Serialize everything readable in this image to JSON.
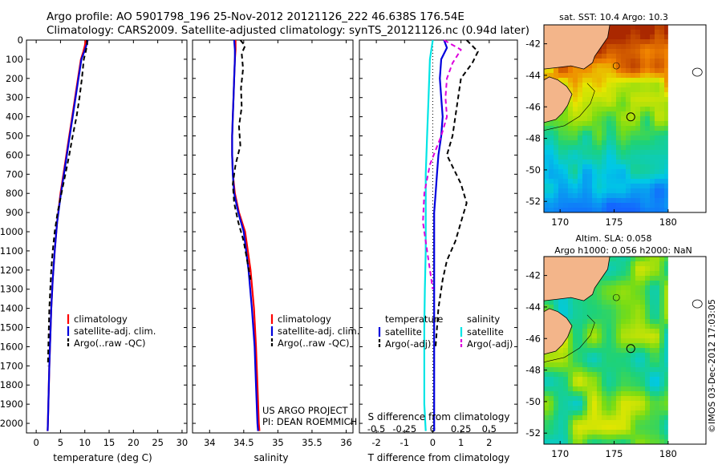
{
  "header": {
    "line1": "Argo profile: AO 5901798_196 25-Nov-2012 20121126_222 46.638S 176.54E",
    "line2": "Climatology: CARS2009. Satellite-adjusted climatology: synTS_20121126.nc (0.94d later)"
  },
  "colors": {
    "climatology": "#ff0000",
    "satellite": "#0000dd",
    "argo": "#000000",
    "salinity_satellite": "#00e5e5",
    "salinity_argo": "#dd00dd",
    "land": "#f3b58a"
  },
  "chart_data": [
    {
      "type": "line",
      "name": "temperature",
      "xlabel": "temperature (deg C)",
      "xlim": [
        -2,
        31
      ],
      "ylim": [
        2050,
        0
      ],
      "xticks": [
        0,
        5,
        10,
        15,
        20,
        25,
        30
      ],
      "yticks": [
        0,
        100,
        200,
        300,
        400,
        500,
        600,
        700,
        800,
        900,
        1000,
        1100,
        1200,
        1300,
        1400,
        1500,
        1600,
        1700,
        1800,
        1900,
        2000
      ],
      "legend": [
        "climatology",
        "satellite-adj. clim.",
        "Argo(..raw -QC)"
      ],
      "series": [
        {
          "name": "climatology",
          "x": [
            10.2,
            10.0,
            9.7,
            9.2,
            8.6,
            8.0,
            7.4,
            6.8,
            5.9,
            5.0,
            4.3,
            3.8,
            3.4,
            3.1,
            2.9,
            2.7,
            2.6,
            2.5,
            2.4,
            2.35
          ],
          "y": [
            0,
            30,
            60,
            100,
            200,
            300,
            400,
            500,
            650,
            800,
            950,
            1100,
            1250,
            1400,
            1550,
            1700,
            1800,
            1900,
            2000,
            2040
          ]
        },
        {
          "name": "satellite-adj. clim.",
          "x": [
            10.6,
            10.3,
            9.9,
            9.3,
            8.7,
            8.1,
            7.5,
            6.9,
            6.0,
            5.1,
            4.3,
            3.8,
            3.4,
            3.1,
            2.9,
            2.7,
            2.6,
            2.5,
            2.4,
            2.35
          ],
          "y": [
            0,
            30,
            60,
            100,
            200,
            300,
            400,
            500,
            650,
            800,
            950,
            1100,
            1250,
            1400,
            1550,
            1700,
            1800,
            1900,
            2000,
            2040
          ]
        },
        {
          "name": "Argo(..raw -QC)",
          "x": [
            10.4,
            10.5,
            10.2,
            9.8,
            9.4,
            8.9,
            8.3,
            7.5,
            6.8,
            6.0,
            5.2,
            4.4,
            3.8,
            3.4,
            3.1,
            2.9,
            2.7,
            2.6,
            2.5,
            2.4
          ],
          "y": [
            0,
            20,
            60,
            100,
            200,
            300,
            400,
            500,
            600,
            700,
            800,
            900,
            1000,
            1100,
            1200,
            1300,
            1400,
            1500,
            1600,
            1700
          ]
        }
      ]
    },
    {
      "type": "line",
      "name": "salinity",
      "xlabel": "salinity",
      "xlim": [
        33.75,
        36.1
      ],
      "ylim": [
        2050,
        0
      ],
      "xticks": [
        34,
        34.5,
        35,
        35.5,
        36
      ],
      "legend": [
        "climatology",
        "satellite-adj. clim.",
        "Argo(..raw -QC)"
      ],
      "annotation": [
        "US ARGO PROJECT",
        "PI: DEAN ROEMMICH"
      ],
      "series": [
        {
          "name": "climatology",
          "x": [
            34.38,
            34.38,
            34.37,
            34.36,
            34.35,
            34.34,
            34.33,
            34.33,
            34.34,
            34.37,
            34.43,
            34.52,
            34.6,
            34.65,
            34.68,
            34.7,
            34.72,
            34.73
          ],
          "y": [
            0,
            50,
            100,
            200,
            300,
            400,
            500,
            600,
            700,
            800,
            900,
            1000,
            1200,
            1400,
            1600,
            1800,
            2000,
            2040
          ]
        },
        {
          "name": "satellite-adj. clim.",
          "x": [
            34.36,
            34.37,
            34.37,
            34.36,
            34.35,
            34.34,
            34.33,
            34.33,
            34.34,
            34.36,
            34.42,
            34.5,
            34.57,
            34.62,
            34.66,
            34.68,
            34.7,
            34.71
          ],
          "y": [
            0,
            50,
            100,
            200,
            300,
            400,
            500,
            600,
            700,
            800,
            900,
            1000,
            1200,
            1400,
            1600,
            1800,
            2000,
            2040
          ]
        },
        {
          "name": "Argo(..raw -QC)",
          "x": [
            34.45,
            34.52,
            34.47,
            34.49,
            34.46,
            34.47,
            34.43,
            34.45,
            34.38,
            34.34,
            34.36,
            34.42,
            34.5,
            34.55,
            34.6
          ],
          "y": [
            0,
            30,
            70,
            150,
            250,
            350,
            450,
            550,
            650,
            750,
            850,
            950,
            1050,
            1150,
            1250
          ]
        }
      ]
    },
    {
      "type": "line",
      "name": "difference",
      "xlabel": "T difference from climatology",
      "xlabel2": "S difference from climatology",
      "xlim": [
        -2.6,
        3.0
      ],
      "xticks": [
        -2,
        -1,
        0,
        1,
        2
      ],
      "xticks_s": [
        "-0.5",
        "-0.25",
        "0",
        "0.25",
        "0.5"
      ],
      "xticks_s_pos": [
        -2,
        -1,
        0,
        1,
        2
      ],
      "ylim": [
        2050,
        0
      ],
      "legend_left_title": "temperature",
      "legend_right_title": "salinity",
      "legend_left": [
        "satellite",
        "Argo(-adj)"
      ],
      "legend_right": [
        "satellite",
        "Argo(-adj)"
      ],
      "series": [
        {
          "name": "T satellite",
          "x": [
            0.4,
            0.5,
            0.3,
            0.25,
            0.3,
            0.35,
            0.3,
            0.2,
            0.15,
            0.1,
            0.05,
            0.05,
            0.05,
            0.05,
            0.05,
            0.05,
            0.05
          ],
          "y": [
            0,
            40,
            100,
            200,
            300,
            400,
            500,
            600,
            700,
            800,
            900,
            1000,
            1200,
            1400,
            1600,
            1800,
            2040
          ]
        },
        {
          "name": "T Argo(-adj)",
          "x": [
            1.2,
            1.6,
            1.4,
            1.0,
            0.9,
            0.8,
            0.7,
            0.5,
            1.0,
            1.2,
            1.0,
            0.8,
            0.5,
            0.35,
            0.2,
            0.1
          ],
          "y": [
            0,
            60,
            120,
            200,
            300,
            400,
            500,
            600,
            750,
            850,
            950,
            1050,
            1150,
            1250,
            1400,
            1600
          ]
        },
        {
          "name": "S satellite",
          "x": [
            0.0,
            -0.1,
            -0.15,
            -0.2,
            -0.25,
            -0.25,
            -0.25,
            -0.28,
            -0.3,
            -0.3,
            -0.3,
            -0.25
          ],
          "y": [
            0,
            100,
            300,
            500,
            700,
            900,
            1100,
            1300,
            1500,
            1700,
            1900,
            2040
          ]
        },
        {
          "name": "S Argo(-adj)",
          "x": [
            0.4,
            1.0,
            0.7,
            0.5,
            0.45,
            0.5,
            0.3,
            -0.1,
            -0.3,
            -0.35,
            -0.2,
            0.0
          ],
          "y": [
            0,
            50,
            120,
            200,
            300,
            400,
            500,
            650,
            800,
            950,
            1100,
            1300
          ]
        }
      ]
    },
    {
      "type": "heatmap",
      "name": "sst-map",
      "title": "sat. SST: 10.4  Argo: 10.3",
      "xlim": [
        168.5,
        183.5
      ],
      "ylim": [
        -52.7,
        -40.8
      ],
      "xticks": [
        170,
        175,
        180
      ],
      "yticks": [
        -42,
        -44,
        -46,
        -48,
        -50,
        -52
      ],
      "profile_lon": 176.54,
      "profile_lat": -46.638,
      "data_lon_max": 180
    },
    {
      "type": "heatmap",
      "name": "sla-map",
      "title": "Altim. SLA: 0.058",
      "subtitle": "Argo h1000: 0.056  h2000: NaN",
      "xlim": [
        168.5,
        183.5
      ],
      "ylim": [
        -52.7,
        -40.8
      ],
      "xticks": [
        170,
        175,
        180
      ],
      "yticks": [
        -42,
        -44,
        -46,
        -48,
        -50,
        -52
      ],
      "profile_lon": 176.54,
      "profile_lat": -46.638,
      "data_lon_max": 180
    }
  ],
  "footer": {
    "stamp": "©IMOS 03-Dec-2012 17:03:05"
  }
}
